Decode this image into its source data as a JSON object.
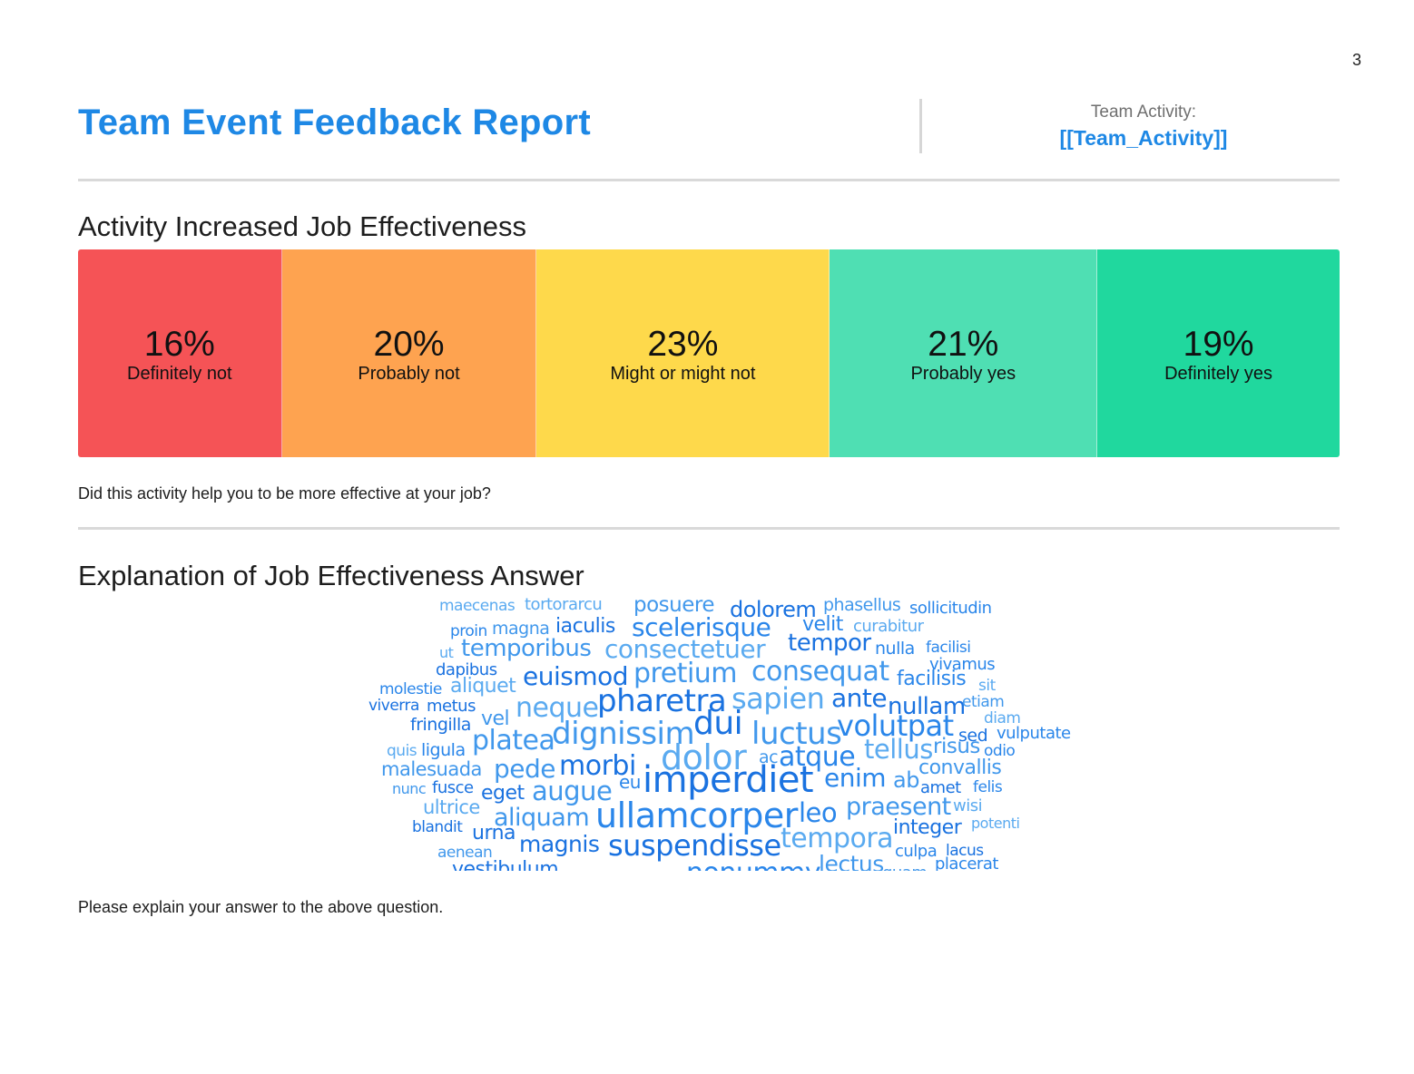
{
  "page": {
    "number": "3"
  },
  "header": {
    "title": "Team Event Feedback Report",
    "team_activity_label": "Team Activity:",
    "team_activity_value": "[[Team_Activity]]"
  },
  "sections": [
    {
      "title": "Activity Increased Job Effectiveness",
      "question": "Did this activity help you to be more effective at your job?"
    },
    {
      "title": "Explanation of Job Effectiveness Answer",
      "question": "Please explain your answer to the above question."
    }
  ],
  "chart_data": {
    "type": "bar",
    "stacked": true,
    "orientation": "horizontal",
    "categories": [
      "Definitely not",
      "Probably not",
      "Might or might not",
      "Probably yes",
      "Definitely yes"
    ],
    "values": [
      16,
      20,
      23,
      21,
      19
    ],
    "value_labels": [
      "16%",
      "20%",
      "23%",
      "21%",
      "19%"
    ],
    "colors": [
      "#f55356",
      "#fea350",
      "#fed94b",
      "#4fdfb3",
      "#20d89e"
    ]
  },
  "word_cloud": {
    "colors": [
      "#1a72e0",
      "#2a86ea",
      "#4198ec",
      "#5aaaf0"
    ],
    "words": [
      "maecenas",
      "tortorarcu",
      "posuere",
      "dolorem",
      "phasellus",
      "sollicitudin",
      "proin",
      "magna",
      "iaculis",
      "scelerisque",
      "velit",
      "curabitur",
      "ut",
      "temporibus",
      "consectetuer",
      "tempor",
      "nulla",
      "facilisi",
      "dapibus",
      "vivamus",
      "molestie",
      "aliquet",
      "euismod",
      "pretium",
      "consequat",
      "facilisis",
      "sit",
      "viverra",
      "metus",
      "neque",
      "pharetra",
      "sapien",
      "ante",
      "nullam",
      "etiam",
      "fringilla",
      "vel",
      "dui",
      "diam",
      "dignissim",
      "luctus",
      "volutpat",
      "sed",
      "vulputate",
      "quis",
      "ligula",
      "platea",
      "tellus",
      "risus",
      "odio",
      "malesuada",
      "pede",
      "morbi",
      "dolor",
      "ac",
      "atque",
      "convallis",
      "nunc",
      "fusce",
      "eget",
      "augue",
      "eu",
      "imperdiet",
      "enim",
      "ab",
      "amet",
      "felis",
      "ultrice",
      "aliquam",
      "ullamcorper",
      "leo",
      "praesent",
      "wisi",
      "blandit",
      "urna",
      "integer",
      "potenti",
      "aenean",
      "magnis",
      "suspendisse",
      "tempora",
      "culpa",
      "lacus",
      "vestibulum",
      "nonummy",
      "lectus",
      "quam",
      "placerat"
    ]
  }
}
